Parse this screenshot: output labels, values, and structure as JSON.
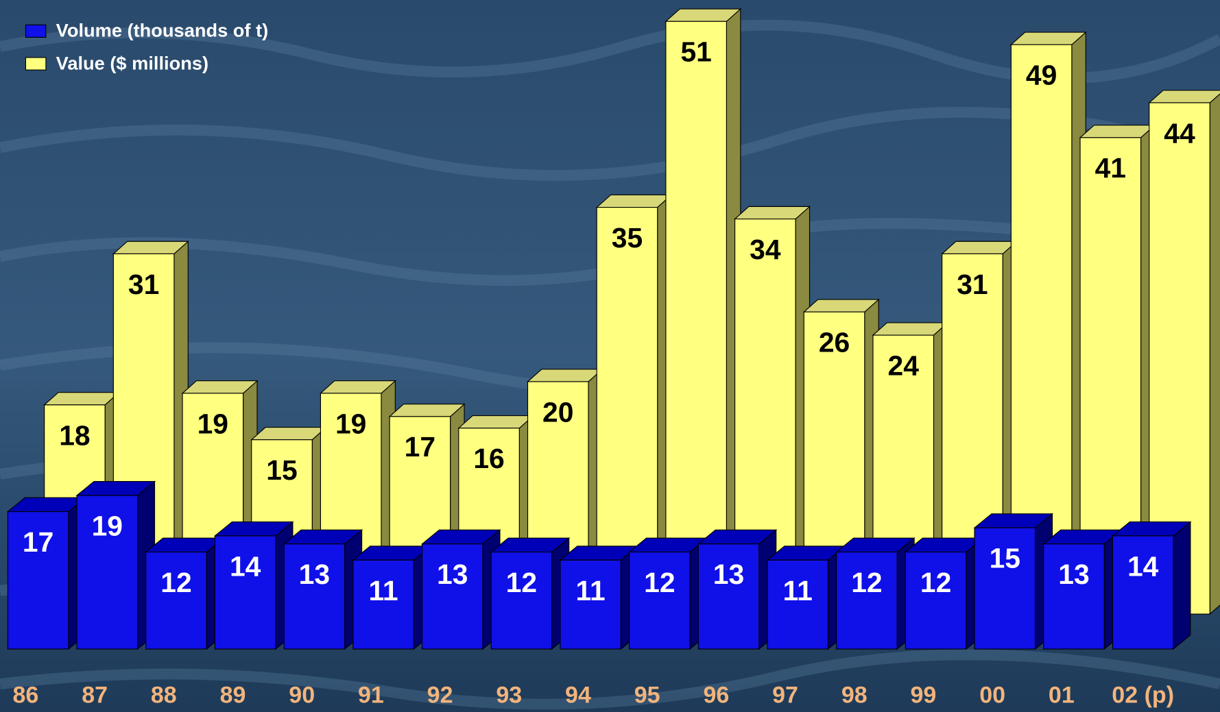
{
  "chart_data": {
    "type": "bar",
    "categories": [
      "86",
      "87",
      "88",
      "89",
      "90",
      "91",
      "92",
      "93",
      "94",
      "95",
      "96",
      "97",
      "98",
      "99",
      "00",
      "01",
      "02 (p)"
    ],
    "series": [
      {
        "name": "Volume (thousands of t)",
        "color": "#1010e8",
        "values": [
          17,
          19,
          12,
          14,
          13,
          11,
          13,
          12,
          11,
          12,
          13,
          11,
          12,
          12,
          15,
          13,
          14
        ]
      },
      {
        "name": "Value ($ millions)",
        "color": "#ffff80",
        "values": [
          18,
          31,
          19,
          15,
          19,
          17,
          16,
          20,
          35,
          51,
          34,
          26,
          24,
          31,
          49,
          41,
          44
        ]
      }
    ]
  }
}
